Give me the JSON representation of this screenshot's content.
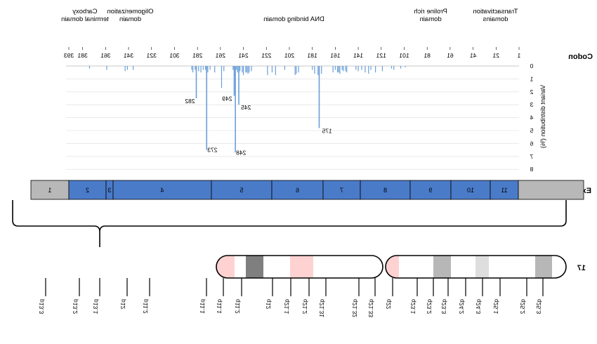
{
  "row_labels": {
    "codon": "Codon",
    "exon": "Exon",
    "chromosome": "17"
  },
  "domains": [
    {
      "label": "Transactivation\ndomains",
      "color": "#f98b86",
      "start": 1,
      "end": 42
    },
    {
      "label": "",
      "color": "#f5c594",
      "start": 42,
      "end": 61
    },
    {
      "label": "Proline rich\ndomain",
      "color": "#fcd4d4",
      "start": 61,
      "end": 95
    },
    {
      "label": "",
      "color": "#ffffff",
      "start": 95,
      "end": 102
    },
    {
      "label": "DNA binding domain",
      "color": "#00d8d8",
      "start": 102,
      "end": 292
    },
    {
      "label": "",
      "color": "#ffffff",
      "start": 292,
      "end": 323
    },
    {
      "label": "Oligomerization\ndomain",
      "color": "#fefe9e",
      "start": 323,
      "end": 356
    },
    {
      "label": "",
      "color": "#ffffff",
      "start": 356,
      "end": 365
    },
    {
      "label": "Carboxy\nterminal domain",
      "color": "#00e58e",
      "start": 365,
      "end": 393
    }
  ],
  "codon_ticks": [
    "1",
    "21",
    "41",
    "61",
    "81",
    "101",
    "121",
    "141",
    "161",
    "181",
    "201",
    "221",
    "241",
    "261",
    "281",
    "301",
    "321",
    "341",
    "361",
    "381",
    "393"
  ],
  "chart_data": {
    "type": "bar",
    "title": "",
    "xlabel": "Codon",
    "ylabel": "Variant distribution (%)",
    "xlim": [
      1,
      393
    ],
    "ylim": [
      0,
      8
    ],
    "y_ticks": [
      "0",
      "1",
      "2",
      "3",
      "4",
      "5",
      "6",
      "7",
      "8"
    ],
    "color": "#6a9fd9",
    "annotations": [
      {
        "codon": 175,
        "value": 4.8,
        "label": "175"
      },
      {
        "codon": 245,
        "value": 3.0,
        "label": "245"
      },
      {
        "codon": 248,
        "value": 6.7,
        "label": "248"
      },
      {
        "codon": 249,
        "value": 2.3,
        "label": "249"
      },
      {
        "codon": 273,
        "value": 6.5,
        "label": "273"
      },
      {
        "codon": 282,
        "value": 2.5,
        "label": "282"
      }
    ],
    "background_bars": [
      [
        100,
        0.1
      ],
      [
        104,
        0.2
      ],
      [
        110,
        0.3
      ],
      [
        112,
        0.2
      ],
      [
        120,
        0.4
      ],
      [
        126,
        0.5
      ],
      [
        130,
        0.3
      ],
      [
        132,
        0.6
      ],
      [
        135,
        0.5
      ],
      [
        138,
        0.3
      ],
      [
        141,
        0.4
      ],
      [
        143,
        0.3
      ],
      [
        151,
        0.5
      ],
      [
        152,
        0.4
      ],
      [
        154,
        0.4
      ],
      [
        155,
        0.3
      ],
      [
        157,
        0.6
      ],
      [
        158,
        0.5
      ],
      [
        159,
        0.5
      ],
      [
        161,
        0.3
      ],
      [
        163,
        0.5
      ],
      [
        173,
        0.6
      ],
      [
        176,
        0.7
      ],
      [
        179,
        0.6
      ],
      [
        181,
        0.3
      ],
      [
        193,
        0.5
      ],
      [
        195,
        0.6
      ],
      [
        196,
        0.7
      ],
      [
        205,
        0.3
      ],
      [
        213,
        0.7
      ],
      [
        216,
        0.5
      ],
      [
        220,
        0.7
      ],
      [
        234,
        0.4
      ],
      [
        236,
        0.5
      ],
      [
        237,
        0.6
      ],
      [
        238,
        0.5
      ],
      [
        239,
        0.5
      ],
      [
        241,
        0.7
      ],
      [
        242,
        0.5
      ],
      [
        244,
        0.4
      ],
      [
        246,
        0.5
      ],
      [
        247,
        0.3
      ],
      [
        250,
        0.3
      ],
      [
        258,
        0.4
      ],
      [
        266,
        0.5
      ],
      [
        270,
        0.3
      ],
      [
        272,
        0.5
      ],
      [
        274,
        0.3
      ],
      [
        276,
        0.3
      ],
      [
        278,
        0.5
      ],
      [
        280,
        0.4
      ],
      [
        283,
        0.3
      ],
      [
        285,
        0.5
      ],
      [
        286,
        0.3
      ],
      [
        260,
        1.7
      ],
      [
        337,
        0.3
      ],
      [
        342,
        0.3
      ],
      [
        344,
        0.4
      ],
      [
        360,
        0.3
      ],
      [
        375,
        0.2
      ]
    ]
  },
  "exons": [
    {
      "label": "1",
      "color": "#b8b8b8"
    },
    {
      "label": "2",
      "color": "#4a7bc9"
    },
    {
      "label": "3",
      "color": "#4a7bc9"
    },
    {
      "label": "4",
      "color": "#4a7bc9"
    },
    {
      "label": "5",
      "color": "#4a7bc9"
    },
    {
      "label": "6",
      "color": "#4a7bc9"
    },
    {
      "label": "7",
      "color": "#4a7bc9"
    },
    {
      "label": "8",
      "color": "#4a7bc9"
    },
    {
      "label": "9",
      "color": "#4a7bc9"
    },
    {
      "label": "10",
      "color": "#4a7bc9"
    },
    {
      "label": "11",
      "color": "#4a7bc9"
    },
    {
      "label": "",
      "color": "#b8b8b8"
    }
  ],
  "bands": [
    {
      "label": "p13.3",
      "color": "#ffffff"
    },
    {
      "label": "p13.2",
      "color": "#b7b7b7"
    },
    {
      "label": "p13.1",
      "color": "#ffffff"
    },
    {
      "label": "p12",
      "color": "#7f7f7f"
    },
    {
      "label": "p11.2",
      "color": "#ffffff"
    },
    {
      "label": "p11.1",
      "color": "#ffd2d2"
    },
    {
      "label": "q11.1",
      "color": "#ffd2d2"
    },
    {
      "label": "q11.2",
      "color": "#ffffff"
    },
    {
      "label": "q12",
      "color": "#b7b7b7"
    },
    {
      "label": "q21.1",
      "color": "#ffffff"
    },
    {
      "label": "q21.2",
      "color": "#dedede"
    },
    {
      "label": "q21.31",
      "color": "#ffffff"
    },
    {
      "label": "q21.32",
      "color": "#b7b7b7"
    },
    {
      "label": "q21.33",
      "color": "#ffffff"
    },
    {
      "label": "q22",
      "color": "#7f7f7f"
    },
    {
      "label": "q23.1",
      "color": "#ffffff"
    },
    {
      "label": "q23.2",
      "color": "#7f7f7f"
    },
    {
      "label": "q23.3",
      "color": "#ffffff"
    },
    {
      "label": "q24.2",
      "color": "#b7b7b7"
    },
    {
      "label": "q24.3",
      "color": "#7f7f7f"
    },
    {
      "label": "q25.1",
      "color": "#ffffff"
    },
    {
      "label": "q25.2",
      "color": "#dedede"
    },
    {
      "label": "q25.3",
      "color": "#ffffff"
    }
  ]
}
